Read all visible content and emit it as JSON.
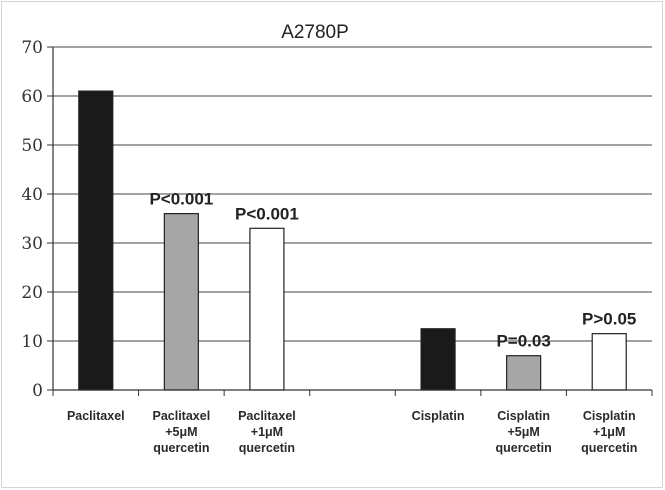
{
  "chart_data": {
    "type": "bar",
    "title": "A2780P",
    "categories": [
      [
        "Paclitaxel"
      ],
      [
        "Paclitaxel",
        "+5μM",
        "quercetin"
      ],
      [
        "Paclitaxel",
        "+1μM",
        "quercetin"
      ],
      [
        ""
      ],
      [
        "Cisplatin"
      ],
      [
        "Cisplatin",
        "+5μM",
        "quercetin"
      ],
      [
        "Cisplatin",
        "+1μM",
        "quercetin"
      ]
    ],
    "values": [
      61,
      36,
      33,
      null,
      12.5,
      7,
      11.5
    ],
    "bar_colors": [
      "#1a1a1a",
      "#a6a6a6",
      "#ffffff",
      null,
      "#1a1a1a",
      "#a6a6a6",
      "#ffffff"
    ],
    "annotations": [
      "",
      "P<0.001",
      "P<0.001",
      "",
      "",
      "P=0.03",
      "P>0.05"
    ],
    "yticks": [
      0,
      10,
      20,
      30,
      40,
      50,
      60,
      70
    ],
    "ylim": [
      0,
      70
    ],
    "xlabel": "",
    "ylabel": "",
    "grid": true
  }
}
